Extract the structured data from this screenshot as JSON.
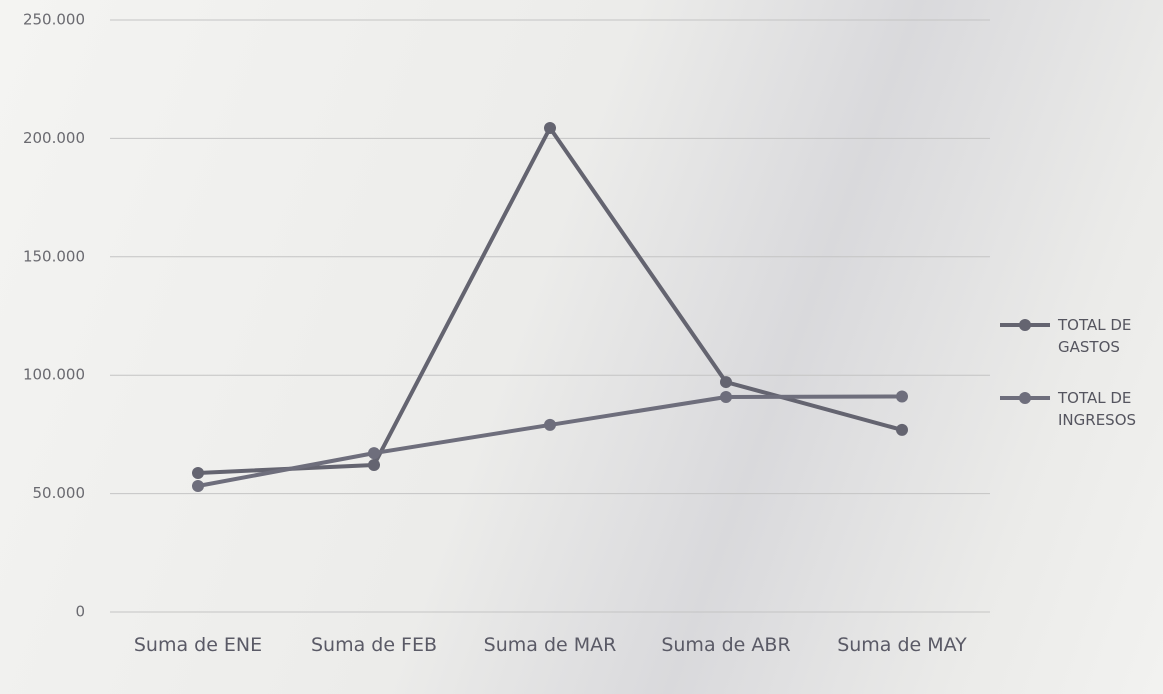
{
  "chart_data": {
    "type": "line",
    "categories": [
      "Suma de ENE",
      "Suma de FEB",
      "Suma de MAR",
      "Suma de ABR",
      "Suma de MAY"
    ],
    "series": [
      {
        "name": "TOTAL DE GASTOS",
        "color": "#646470",
        "values": [
          58700,
          62100,
          204400,
          97100,
          76900
        ]
      },
      {
        "name": "TOTAL DE INGRESOS",
        "color": "#6e6e7c",
        "values": [
          53200,
          67100,
          79000,
          90800,
          91000
        ]
      }
    ],
    "ylim": [
      0,
      250000
    ],
    "yticks": [
      {
        "value": 0,
        "label": "0"
      },
      {
        "value": 50000,
        "label": "50.000"
      },
      {
        "value": 100000,
        "label": "100.000"
      },
      {
        "value": 150000,
        "label": "150.000"
      },
      {
        "value": 200000,
        "label": "200.000"
      },
      {
        "value": 250000,
        "label": "250.000"
      }
    ],
    "grid": true,
    "legend": "right"
  }
}
